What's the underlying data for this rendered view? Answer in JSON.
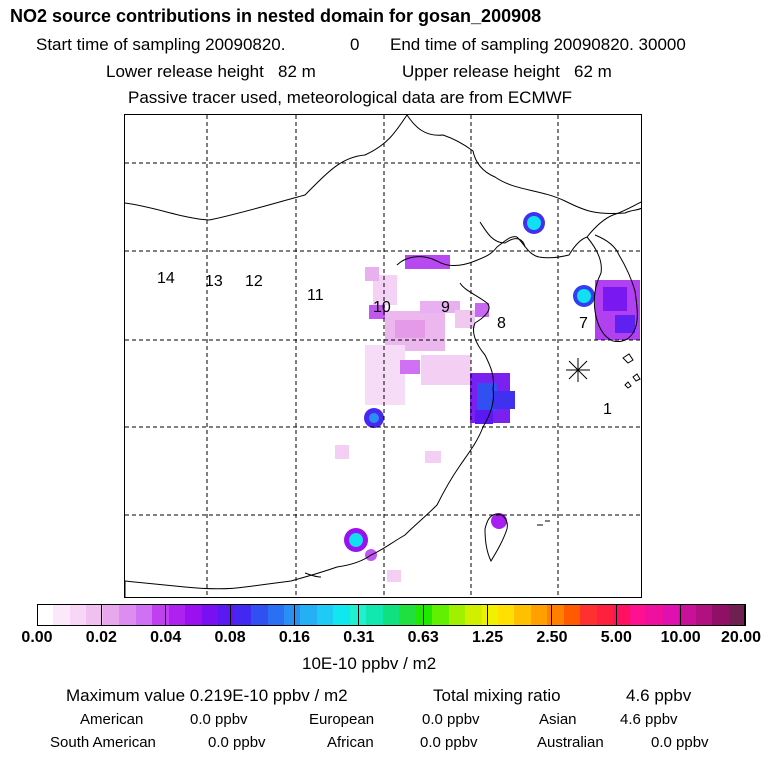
{
  "header": {
    "title": "NO2 source contributions in nested domain for gosan_200908",
    "start_label": "Start time of sampling 20090820.",
    "start_value": "0",
    "end_label": "End time of sampling 20090820. 30000",
    "lower_release": "Lower release height   82 m",
    "upper_release": "Upper release height   62 m",
    "tracer_note": "Passive tracer used, meteorological data are from ECMWF"
  },
  "map": {
    "region_labels": [
      "1",
      "7",
      "8",
      "9",
      "10",
      "11",
      "12",
      "13",
      "14"
    ],
    "receptor_marker": "gosan"
  },
  "colorbar": {
    "unit": "10E-10 ppbv / m2",
    "ticks": [
      "0.00",
      "0.02",
      "0.04",
      "0.08",
      "0.16",
      "0.31",
      "0.63",
      "1.25",
      "2.50",
      "5.00",
      "10.00",
      "20.00"
    ],
    "colors": [
      "#ffffff",
      "#fbe8fb",
      "#f7d6f7",
      "#f0c0f0",
      "#e8a8ec",
      "#dd8cf0",
      "#d070f2",
      "#c040f0",
      "#ad22f0",
      "#9a10f0",
      "#7a10f2",
      "#5a18f2",
      "#4228f0",
      "#3050f2",
      "#2a70f5",
      "#2a8ff5",
      "#25aff5",
      "#1fcaf5",
      "#10e8f0",
      "#20f0d0",
      "#10e8b0",
      "#10e080",
      "#20e040",
      "#20e800",
      "#60f000",
      "#a0f000",
      "#d0f000",
      "#f0f000",
      "#ffe000",
      "#ffc000",
      "#ffa000",
      "#ff8000",
      "#ff5a00",
      "#ff3030",
      "#ff2040",
      "#ff1060",
      "#ff1090",
      "#f010a0",
      "#e010b0",
      "#c81098",
      "#b01080",
      "#901068",
      "#702050"
    ]
  },
  "summary": {
    "max_label": "Maximum value  0.219E-10 ppbv / m2",
    "total_label": "Total mixing ratio",
    "total_value": "4.6 ppbv",
    "american_label": "American",
    "american_value": "0.0 ppbv",
    "european_label": "European",
    "european_value": "0.0 ppbv",
    "asian_label": "Asian",
    "asian_value": "4.6 ppbv",
    "south_american_label": "South American",
    "south_american_value": "0.0 ppbv",
    "african_label": "African",
    "african_value": "0.0 ppbv",
    "australian_label": "Australian",
    "australian_value": "0.0 ppbv"
  }
}
